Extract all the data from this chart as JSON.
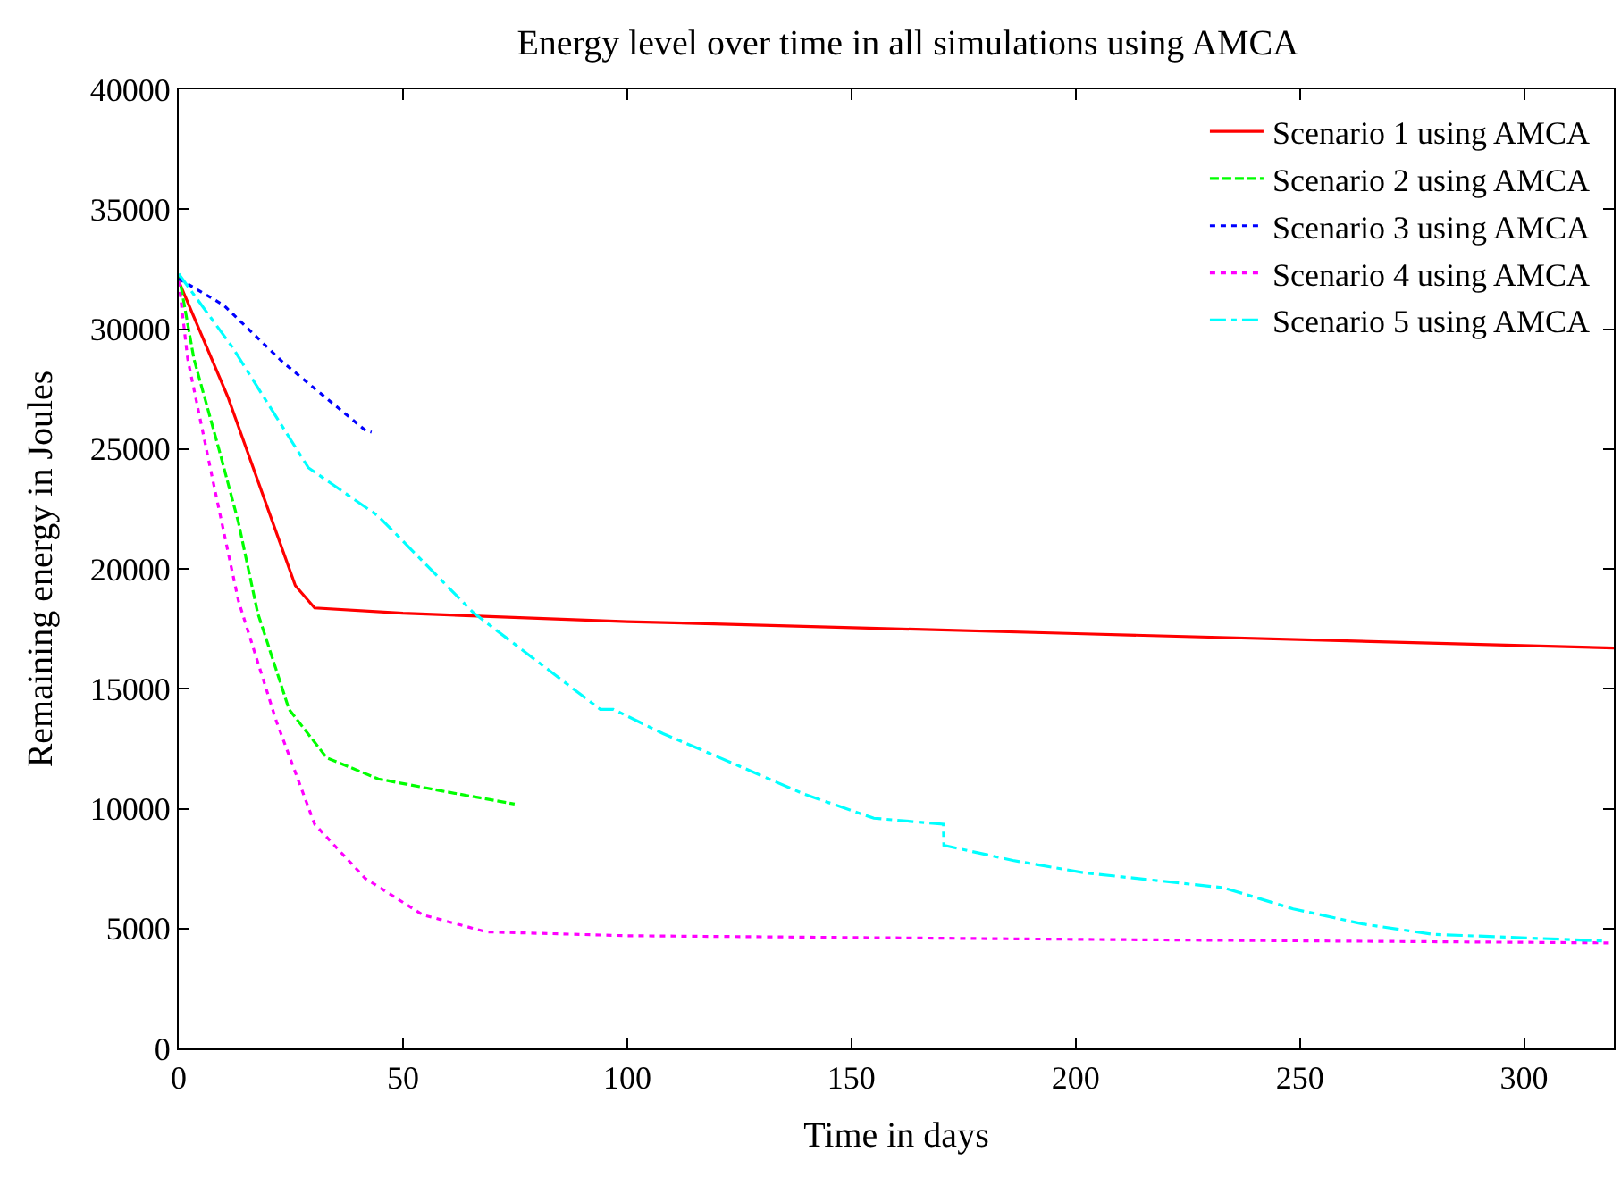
{
  "chart_data": {
    "type": "line",
    "title": "Energy level over time in all simulations using AMCA",
    "xlabel": "Time in days",
    "ylabel": "Remaining energy in Joules",
    "xlim": [
      0,
      320
    ],
    "ylim": [
      0,
      40000
    ],
    "xticks": [
      0,
      50,
      100,
      150,
      200,
      250,
      300
    ],
    "yticks": [
      0,
      5000,
      10000,
      15000,
      20000,
      25000,
      30000,
      35000,
      40000
    ],
    "legend": "top right",
    "marker": "none",
    "series": [
      {
        "name": "Scenario 1 using AMCA",
        "color": "#ff0000",
        "line_style": "solid",
        "x": [
          0,
          11,
          20.4,
          26,
          30.3,
          50,
          100,
          200,
          320
        ],
        "values": [
          32000,
          27150,
          22230,
          19300,
          18370,
          18150,
          17800,
          17300,
          16700
        ]
      },
      {
        "name": "Scenario 2 using AMCA",
        "color": "#00ff00",
        "line_style": "dashed",
        "x": [
          0,
          3.4,
          9,
          13.3,
          17.6,
          24.6,
          33,
          44.5,
          58.6,
          74.9
        ],
        "values": [
          32300,
          28750,
          24970,
          21950,
          18170,
          14140,
          12120,
          11240,
          10740,
          10190
        ]
      },
      {
        "name": "Scenario 3 using AMCA",
        "color": "#0000ff",
        "line_style": "dotted",
        "x": [
          0,
          10,
          23.2,
          41.6,
          43
        ],
        "values": [
          32100,
          31000,
          28620,
          25780,
          25700
        ]
      },
      {
        "name": "Scenario 4 using AMCA",
        "color": "#ff00ff",
        "line_style": "dotted",
        "x": [
          0,
          2,
          7.6,
          13.3,
          21.8,
          30.3,
          41.6,
          54.4,
          68.6,
          100,
          200,
          320
        ],
        "values": [
          32000,
          28750,
          23700,
          18680,
          13630,
          9350,
          7090,
          5570,
          4860,
          4700,
          4550,
          4400
        ]
      },
      {
        "name": "Scenario 5 using AMCA",
        "color": "#00ffff",
        "line_style": "dashdot",
        "x": [
          0,
          11.9,
          28.9,
          44.5,
          65.7,
          94,
          96.9,
          108,
          123.8,
          139.4,
          155,
          170.5,
          170.6,
          186,
          201.7,
          233,
          248.5,
          264,
          279.6,
          318
        ],
        "values": [
          32300,
          29260,
          24220,
          22200,
          18170,
          14140,
          14140,
          13130,
          11870,
          10610,
          9600,
          9350,
          8470,
          7840,
          7330,
          6700,
          5820,
          5190,
          4760,
          4480
        ]
      }
    ]
  }
}
